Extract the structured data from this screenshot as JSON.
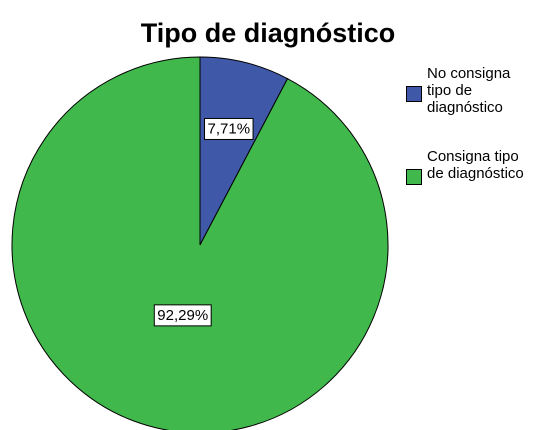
{
  "chart_data": {
    "type": "pie",
    "title": "Tipo de diagnóstico",
    "categories": [
      "No consigna tipo de diagnóstico",
      "Consigna tipo de diagnóstico"
    ],
    "values": [
      7.71,
      92.29
    ],
    "value_labels": [
      "7,71%",
      "92,29%"
    ],
    "colors": [
      "#3f58a8",
      "#41b84b"
    ]
  }
}
